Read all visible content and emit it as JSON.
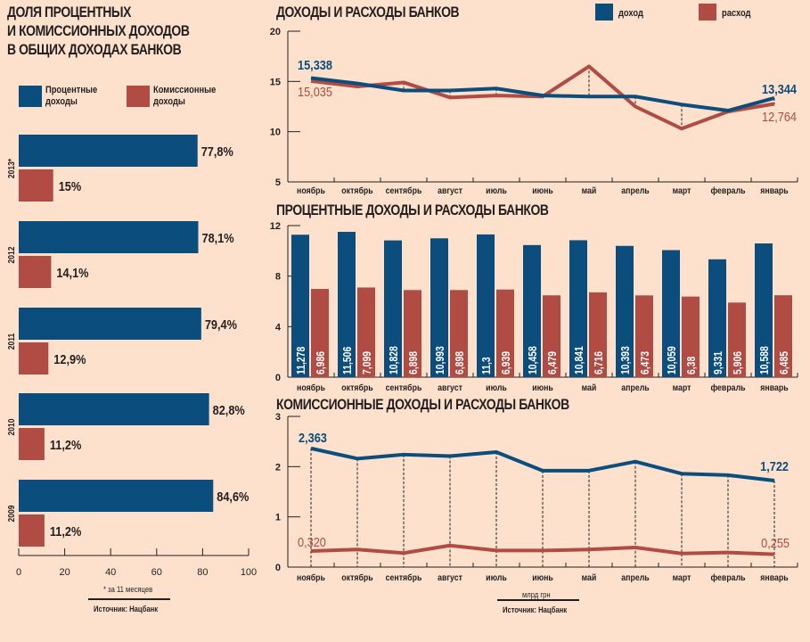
{
  "colors": {
    "background": "#fde1cc",
    "income": "#0b4d7c",
    "expense": "#b04c44",
    "text": "#231f20"
  },
  "left_panel": {
    "title_lines": [
      "ДОЛЯ ПРОЦЕНТНЫХ",
      "И КОМИССИОННЫХ ДОХОДОВ",
      "В ОБЩИХ ДОХОДАХ БАНКОВ"
    ],
    "legend": [
      {
        "label_line1": "Процентные",
        "label_line2": "доходы",
        "color": "#0b4d7c"
      },
      {
        "label_line1": "Комиссионные",
        "label_line2": "доходы",
        "color": "#b04c44"
      }
    ],
    "footnote": "* за 11 месяцев",
    "source": "Источник: Нацбанк"
  },
  "top_panel": {
    "title": "ДОХОДЫ И РАСХОДЫ БАНКОВ",
    "legend": [
      {
        "label": "доход",
        "color": "#0b4d7c"
      },
      {
        "label": "расход",
        "color": "#b04c44"
      }
    ]
  },
  "middle_panel": {
    "title": "ПРОЦЕНТНЫЕ ДОХОДЫ И РАСХОДЫ БАНКОВ"
  },
  "bottom_panel": {
    "title": "КОМИССИОННЫЕ ДОХОДЫ И РАСХОДЫ БАНКОВ",
    "unit": "млрд грн",
    "source": "Источник: Нацбанк"
  },
  "chart_data": [
    {
      "id": "share",
      "type": "bar",
      "orientation": "horizontal",
      "title": "ДОЛЯ ПРОЦЕНТНЫХ И КОМИССИОННЫХ ДОХОДОВ В ОБЩИХ ДОХОДАХ БАНКОВ",
      "categories": [
        "2013*",
        "2012",
        "2011",
        "2010",
        "2009"
      ],
      "series": [
        {
          "name": "Процентные доходы",
          "values": [
            77.8,
            78.1,
            79.4,
            82.8,
            84.6
          ],
          "labels": [
            "77,8%",
            "78,1%",
            "79,4%",
            "82,8%",
            "84,6%"
          ]
        },
        {
          "name": "Комиссионные доходы",
          "values": [
            15,
            14.1,
            12.9,
            11.2,
            11.2
          ],
          "labels": [
            "15%",
            "14,1%",
            "12,9%",
            "11,2%",
            "11,2%"
          ]
        }
      ],
      "xlim": [
        0,
        100
      ],
      "xticks": [
        0,
        20,
        40,
        60,
        80,
        100
      ],
      "legend": "top"
    },
    {
      "id": "total",
      "type": "line",
      "title": "ДОХОДЫ И РАСХОДЫ БАНКОВ",
      "categories": [
        "ноябрь",
        "октябрь",
        "сентябрь",
        "август",
        "июль",
        "июнь",
        "май",
        "апрель",
        "март",
        "февраль",
        "январь"
      ],
      "series": [
        {
          "name": "доход",
          "values": [
            15.338,
            14.8,
            14.1,
            14.1,
            14.3,
            13.6,
            13.5,
            13.5,
            12.7,
            12.1,
            13.344
          ],
          "end_labels": [
            "15,338",
            "13,344"
          ]
        },
        {
          "name": "расход",
          "values": [
            15.035,
            14.5,
            14.9,
            13.4,
            13.6,
            13.5,
            16.5,
            12.5,
            10.3,
            12.0,
            12.764
          ],
          "end_labels": [
            "15,035",
            "12,764"
          ]
        }
      ],
      "ylim": [
        5,
        20
      ],
      "yticks": [
        5,
        10,
        15,
        20
      ],
      "legend": "top-right"
    },
    {
      "id": "interest",
      "type": "bar",
      "title": "ПРОЦЕНТНЫЕ ДОХОДЫ И РАСХОДЫ БАНКОВ",
      "categories": [
        "ноябрь",
        "октябрь",
        "сентябрь",
        "август",
        "июль",
        "июнь",
        "май",
        "апрель",
        "март",
        "февраль",
        "январь"
      ],
      "series": [
        {
          "name": "доход",
          "values": [
            11.278,
            11.506,
            10.828,
            10.993,
            11.3,
            10.458,
            10.841,
            10.393,
            10.059,
            9.331,
            10.588
          ],
          "labels": [
            "11,278",
            "11,506",
            "10,828",
            "10,993",
            "11,3",
            "10,458",
            "10,841",
            "10,393",
            "10,059",
            "9,331",
            "10,588"
          ]
        },
        {
          "name": "расход",
          "values": [
            6.986,
            7.099,
            6.898,
            6.898,
            6.939,
            6.479,
            6.716,
            6.473,
            6.38,
            5.906,
            6.485
          ],
          "labels": [
            "6,986",
            "7,099",
            "6,898",
            "6,898",
            "6,939",
            "6,479",
            "6,716",
            "6,473",
            "6,38",
            "5,906",
            "6,485"
          ]
        }
      ],
      "ylim": [
        0,
        12
      ],
      "yticks": [
        0,
        4,
        8,
        12
      ]
    },
    {
      "id": "commission",
      "type": "line",
      "title": "КОМИССИОННЫЕ ДОХОДЫ И РАСХОДЫ БАНКОВ",
      "categories": [
        "ноябрь",
        "октябрь",
        "сентябрь",
        "август",
        "июль",
        "июнь",
        "май",
        "апрель",
        "март",
        "февраль",
        "январь"
      ],
      "series": [
        {
          "name": "доход",
          "values": [
            2.363,
            2.16,
            2.24,
            2.21,
            2.29,
            1.92,
            1.92,
            2.1,
            1.86,
            1.83,
            1.722
          ],
          "end_labels": [
            "2,363",
            "1,722"
          ]
        },
        {
          "name": "расход",
          "values": [
            0.32,
            0.35,
            0.28,
            0.43,
            0.33,
            0.33,
            0.35,
            0.39,
            0.27,
            0.29,
            0.255
          ],
          "end_labels": [
            "0,320",
            "0,255"
          ]
        }
      ],
      "ylim": [
        0,
        3
      ],
      "yticks": [
        0,
        1,
        2,
        3
      ],
      "ylabel": "млрд грн"
    }
  ]
}
